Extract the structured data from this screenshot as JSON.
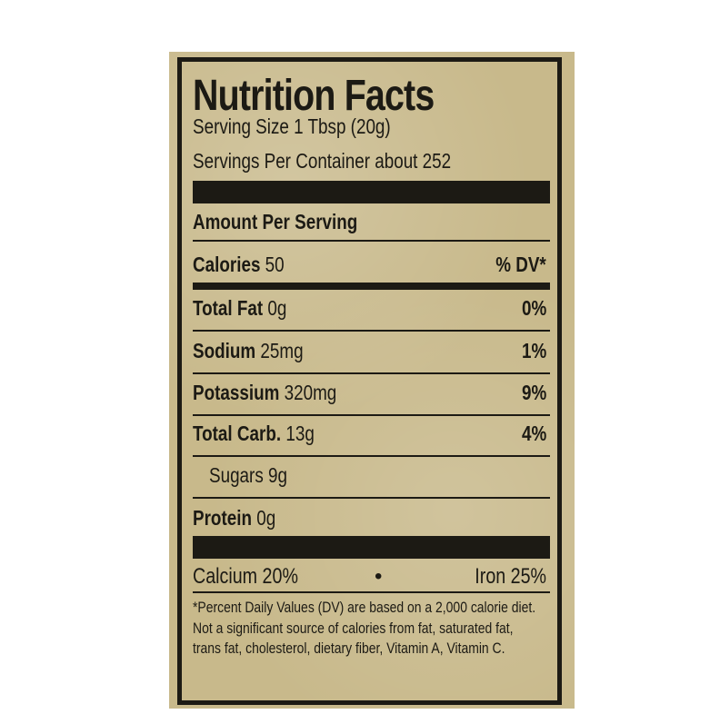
{
  "title": "Nutrition Facts",
  "serving_size": "Serving Size 1 Tbsp (20g)",
  "servings_per_container": "Servings Per Container about 252",
  "amount_per_serving": "Amount Per Serving",
  "calories": {
    "label": "Calories",
    "value": "50",
    "dv_header": "% DV*"
  },
  "nutrients": [
    {
      "label": "Total Fat",
      "value": "0g",
      "dv": "0%"
    },
    {
      "label": "Sodium",
      "value": "25mg",
      "dv": "1%"
    },
    {
      "label": "Potassium",
      "value": "320mg",
      "dv": "9%"
    },
    {
      "label": "Total Carb.",
      "value": "13g",
      "dv": "4%"
    },
    {
      "label": "Sugars",
      "value": "9g",
      "dv": ""
    },
    {
      "label": "Protein",
      "value": "0g",
      "dv": ""
    }
  ],
  "minerals": {
    "calcium": "Calcium 20%",
    "separator": "•",
    "iron": "Iron 25%"
  },
  "footnote": "*Percent Daily Values (DV) are based on a 2,000 calorie diet. Not a significant source of calories from fat, saturated fat, trans fat, cholesterol, dietary fiber, Vitamin A, Vitamin C."
}
